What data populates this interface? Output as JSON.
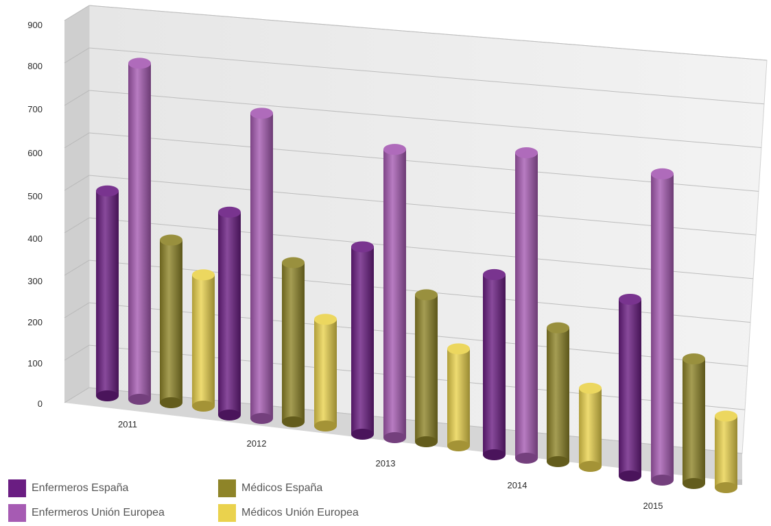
{
  "chart_data": {
    "type": "bar",
    "categories": [
      "2011",
      "2012",
      "2013",
      "2014",
      "2015"
    ],
    "series": [
      {
        "name": "Enfermeros España",
        "values": [
          520,
          500,
          450,
          420,
          400
        ],
        "color": "#6a1d82"
      },
      {
        "name": "Enfermeros Unión Europea",
        "values": [
          850,
          750,
          690,
          710,
          690
        ],
        "color": "#a65bb3"
      },
      {
        "name": "Médicos España",
        "values": [
          410,
          390,
          350,
          310,
          280
        ],
        "color": "#8e8428"
      },
      {
        "name": "Médicos Unión Europea",
        "values": [
          330,
          260,
          230,
          180,
          160
        ],
        "color": "#ead24d"
      }
    ],
    "y_ticks": [
      "900",
      "800",
      "700",
      "600",
      "500",
      "400",
      "300",
      "200",
      "100",
      "0"
    ],
    "ylim": [
      0,
      900
    ],
    "grid": true,
    "legend_position": "bottom-left"
  }
}
